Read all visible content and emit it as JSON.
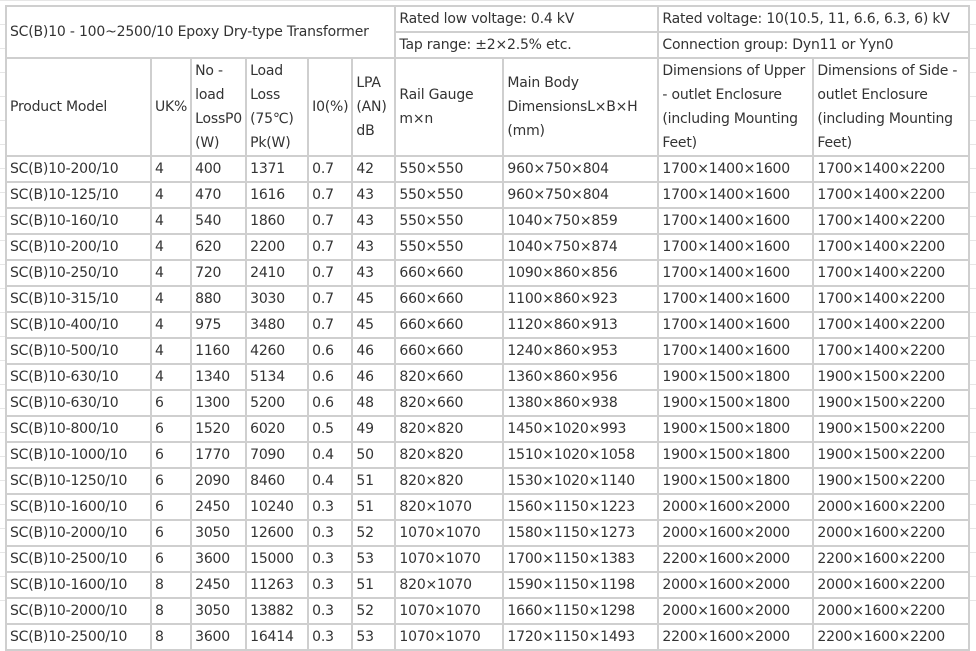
{
  "title": "SC(B)10 - 100~2500/10 Epoxy Dry-type Transformer",
  "specs": {
    "rated_low_voltage": "Rated low voltage: 0.4 kV",
    "rated_voltage": "Rated voltage: 10(10.5, 11, 6.6, 6.3, 6) kV",
    "tap_range": "Tap range: ±2×2.5% etc.",
    "connection_group": "Connection group: Dyn11 or Yyn0"
  },
  "columns": [
    "Product Model",
    "UK%",
    "No - load LossP0 (W)",
    "Load Loss (75℃) Pk(W)",
    "I0(%)",
    "LPA (AN) dB",
    "Rail Gauge m×n",
    "Main Body DimensionsL×B×H (mm)",
    "Dimensions of Upper - outlet Enclosure (including Mounting Feet)",
    "Dimensions of Side - outlet Enclosure (including Mounting Feet)"
  ],
  "rows": [
    [
      "SC(B)10-200/10",
      "4",
      "400",
      "1371",
      "0.7",
      "42",
      "550×550",
      "960×750×804",
      "1700×1400×1600",
      "1700×1400×2200"
    ],
    [
      "SC(B)10-125/10",
      "4",
      "470",
      "1616",
      "0.7",
      "43",
      "550×550",
      "960×750×804",
      "1700×1400×1600",
      "1700×1400×2200"
    ],
    [
      "SC(B)10-160/10",
      "4",
      "540",
      "1860",
      "0.7",
      "43",
      "550×550",
      "1040×750×859",
      "1700×1400×1600",
      "1700×1400×2200"
    ],
    [
      "SC(B)10-200/10",
      "4",
      "620",
      "2200",
      "0.7",
      "43",
      "550×550",
      "1040×750×874",
      "1700×1400×1600",
      "1700×1400×2200"
    ],
    [
      "SC(B)10-250/10",
      "4",
      "720",
      "2410",
      "0.7",
      "43",
      "660×660",
      "1090×860×856",
      "1700×1400×1600",
      "1700×1400×2200"
    ],
    [
      "SC(B)10-315/10",
      "4",
      "880",
      "3030",
      "0.7",
      "45",
      "660×660",
      "1100×860×923",
      "1700×1400×1600",
      "1700×1400×2200"
    ],
    [
      "SC(B)10-400/10",
      "4",
      "975",
      "3480",
      "0.7",
      "45",
      "660×660",
      "1120×860×913",
      "1700×1400×1600",
      "1700×1400×2200"
    ],
    [
      "SC(B)10-500/10",
      "4",
      "1160",
      "4260",
      "0.6",
      "46",
      "660×660",
      "1240×860×953",
      "1700×1400×1600",
      "1700×1400×2200"
    ],
    [
      "SC(B)10-630/10",
      "4",
      "1340",
      "5134",
      "0.6",
      "46",
      "820×660",
      "1360×860×956",
      "1900×1500×1800",
      "1900×1500×2200"
    ],
    [
      "SC(B)10-630/10",
      "6",
      "1300",
      "5200",
      "0.6",
      "48",
      "820×660",
      "1380×860×938",
      "1900×1500×1800",
      "1900×1500×2200"
    ],
    [
      "SC(B)10-800/10",
      "6",
      "1520",
      "6020",
      "0.5",
      "49",
      "820×820",
      "1450×1020×993",
      "1900×1500×1800",
      "1900×1500×2200"
    ],
    [
      "SC(B)10-1000/10",
      "6",
      "1770",
      "7090",
      "0.4",
      "50",
      "820×820",
      "1510×1020×1058",
      "1900×1500×1800",
      "1900×1500×2200"
    ],
    [
      "SC(B)10-1250/10",
      "6",
      "2090",
      "8460",
      "0.4",
      "51",
      "820×820",
      "1530×1020×1140",
      "1900×1500×1800",
      "1900×1500×2200"
    ],
    [
      "SC(B)10-1600/10",
      "6",
      "2450",
      "10240",
      "0.3",
      "51",
      "820×1070",
      "1560×1150×1223",
      "2000×1600×2000",
      "2000×1600×2200"
    ],
    [
      "SC(B)10-2000/10",
      "6",
      "3050",
      "12600",
      "0.3",
      "52",
      "1070×1070",
      "1580×1150×1273",
      "2000×1600×2000",
      "2000×1600×2200"
    ],
    [
      "SC(B)10-2500/10",
      "6",
      "3600",
      "15000",
      "0.3",
      "53",
      "1070×1070",
      "1700×1150×1383",
      "2200×1600×2000",
      "2200×1600×2200"
    ],
    [
      "SC(B)10-1600/10",
      "8",
      "2450",
      "11263",
      "0.3",
      "51",
      "820×1070",
      "1590×1150×1198",
      "2000×1600×2000",
      "2000×1600×2200"
    ],
    [
      "SC(B)10-2000/10",
      "8",
      "3050",
      "13882",
      "0.3",
      "52",
      "1070×1070",
      "1660×1150×1298",
      "2000×1600×2000",
      "2000×1600×2200"
    ],
    [
      "SC(B)10-2500/10",
      "8",
      "3600",
      "16414",
      "0.3",
      "53",
      "1070×1070",
      "1720×1150×1493",
      "2200×1600×2000",
      "2200×1600×2200"
    ]
  ]
}
